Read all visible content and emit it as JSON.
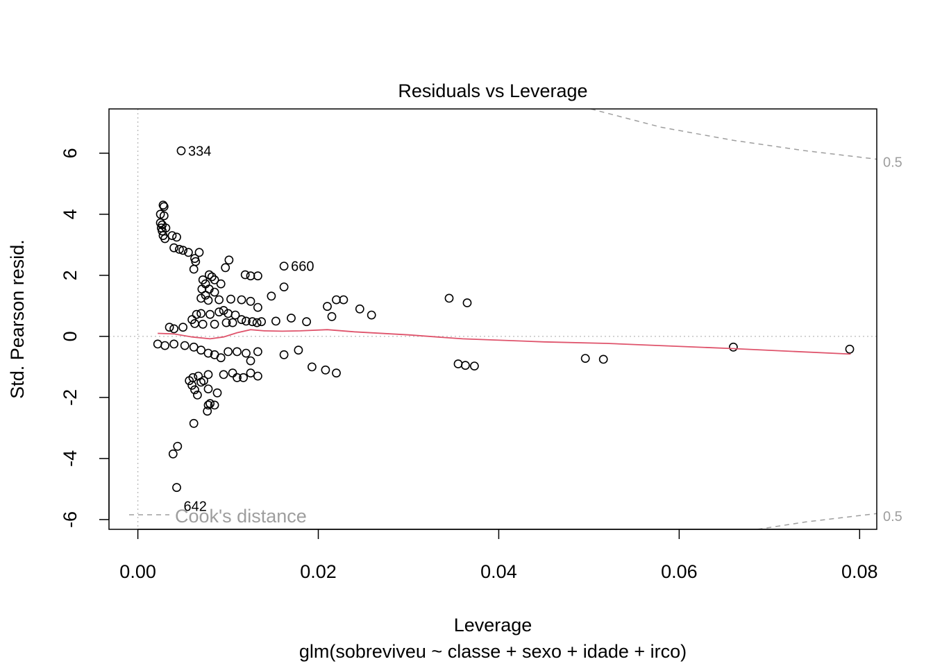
{
  "chart_data": {
    "type": "scatter",
    "title": "Residuals vs Leverage",
    "xlabel": "Leverage",
    "ylabel": "Std. Pearson resid.",
    "subtitle": "glm(sobreviveu ~ classe + sexo + idade + irco)",
    "xlim": [
      -0.0032,
      0.0819
    ],
    "ylim": [
      -6.32,
      7.45
    ],
    "x_ticks": [
      0.0,
      0.02,
      0.04,
      0.06,
      0.08
    ],
    "x_tick_labels": [
      "0.00",
      "0.02",
      "0.04",
      "0.06",
      "0.08"
    ],
    "y_ticks": [
      -6,
      -4,
      -2,
      0,
      2,
      4,
      6
    ],
    "y_tick_labels": [
      "-6",
      "-4",
      "-2",
      "0",
      "2",
      "4",
      "6"
    ],
    "grid": false,
    "reference_lines": {
      "vertical_x": 0,
      "horizontal_y": 0
    },
    "legend": {
      "label": "Cook's distance",
      "placement": "bottom-left"
    },
    "cooks_distance": {
      "level_label": "0.5",
      "upper": [
        [
          0.0502,
          7.45
        ],
        [
          0.058,
          6.85
        ],
        [
          0.066,
          6.42
        ],
        [
          0.074,
          6.08
        ],
        [
          0.082,
          5.8
        ]
      ],
      "lower": [
        [
          0.0687,
          -6.32
        ],
        [
          0.074,
          -6.08
        ],
        [
          0.082,
          -5.8
        ]
      ]
    },
    "smooth_line": {
      "color": "#DF536B",
      "points": [
        [
          0.0022,
          0.1
        ],
        [
          0.004,
          0.08
        ],
        [
          0.006,
          -0.02
        ],
        [
          0.008,
          -0.08
        ],
        [
          0.0095,
          -0.02
        ],
        [
          0.011,
          0.12
        ],
        [
          0.0125,
          0.22
        ],
        [
          0.014,
          0.18
        ],
        [
          0.016,
          0.17
        ],
        [
          0.018,
          0.18
        ],
        [
          0.021,
          0.22
        ],
        [
          0.024,
          0.15
        ],
        [
          0.03,
          0.05
        ],
        [
          0.036,
          -0.08
        ],
        [
          0.045,
          -0.18
        ],
        [
          0.052,
          -0.23
        ],
        [
          0.066,
          -0.4
        ],
        [
          0.079,
          -0.58
        ]
      ]
    },
    "labeled_points": [
      {
        "label": "334",
        "x": 0.0048,
        "y": 6.08
      },
      {
        "label": "660",
        "x": 0.0162,
        "y": 2.3
      },
      {
        "label": "642",
        "x": 0.0043,
        "y": -4.95
      }
    ],
    "points": [
      [
        0.0048,
        6.08
      ],
      [
        0.0162,
        2.3
      ],
      [
        0.0043,
        -4.95
      ],
      [
        0.0028,
        4.3
      ],
      [
        0.0029,
        4.25
      ],
      [
        0.0025,
        4.0
      ],
      [
        0.0029,
        3.95
      ],
      [
        0.0025,
        3.72
      ],
      [
        0.0027,
        3.65
      ],
      [
        0.0026,
        3.55
      ],
      [
        0.0031,
        3.55
      ],
      [
        0.0027,
        3.45
      ],
      [
        0.0028,
        3.3
      ],
      [
        0.003,
        3.2
      ],
      [
        0.0038,
        3.3
      ],
      [
        0.0043,
        3.25
      ],
      [
        0.004,
        2.9
      ],
      [
        0.0046,
        2.85
      ],
      [
        0.005,
        2.82
      ],
      [
        0.0056,
        2.75
      ],
      [
        0.0068,
        2.75
      ],
      [
        0.0063,
        2.55
      ],
      [
        0.0064,
        2.45
      ],
      [
        0.0062,
        2.2
      ],
      [
        0.0101,
        2.5
      ],
      [
        0.0097,
        2.25
      ],
      [
        0.0119,
        2.02
      ],
      [
        0.0125,
        1.98
      ],
      [
        0.0133,
        1.98
      ],
      [
        0.0079,
        2.02
      ],
      [
        0.0082,
        1.95
      ],
      [
        0.0072,
        1.85
      ],
      [
        0.0085,
        1.85
      ],
      [
        0.0075,
        1.72
      ],
      [
        0.0092,
        1.72
      ],
      [
        0.0071,
        1.55
      ],
      [
        0.0079,
        1.55
      ],
      [
        0.0085,
        1.45
      ],
      [
        0.0075,
        1.35
      ],
      [
        0.007,
        1.25
      ],
      [
        0.0078,
        1.18
      ],
      [
        0.009,
        1.2
      ],
      [
        0.0103,
        1.22
      ],
      [
        0.0115,
        1.2
      ],
      [
        0.0125,
        1.15
      ],
      [
        0.0133,
        0.95
      ],
      [
        0.0148,
        1.32
      ],
      [
        0.0162,
        1.62
      ],
      [
        0.021,
        0.98
      ],
      [
        0.022,
        1.2
      ],
      [
        0.0228,
        1.2
      ],
      [
        0.0246,
        0.9
      ],
      [
        0.0259,
        0.7
      ],
      [
        0.0215,
        0.65
      ],
      [
        0.0345,
        1.25
      ],
      [
        0.0365,
        1.1
      ],
      [
        0.017,
        0.6
      ],
      [
        0.0187,
        0.48
      ],
      [
        0.0153,
        0.5
      ],
      [
        0.0035,
        0.3
      ],
      [
        0.004,
        0.25
      ],
      [
        0.005,
        0.3
      ],
      [
        0.006,
        0.55
      ],
      [
        0.0065,
        0.72
      ],
      [
        0.007,
        0.75
      ],
      [
        0.008,
        0.72
      ],
      [
        0.009,
        0.8
      ],
      [
        0.0095,
        0.85
      ],
      [
        0.01,
        0.75
      ],
      [
        0.0108,
        0.7
      ],
      [
        0.0115,
        0.55
      ],
      [
        0.012,
        0.5
      ],
      [
        0.0127,
        0.48
      ],
      [
        0.0132,
        0.45
      ],
      [
        0.0137,
        0.48
      ],
      [
        0.0063,
        0.42
      ],
      [
        0.0072,
        0.4
      ],
      [
        0.0085,
        0.4
      ],
      [
        0.0098,
        0.45
      ],
      [
        0.0105,
        0.45
      ],
      [
        0.0022,
        -0.25
      ],
      [
        0.003,
        -0.3
      ],
      [
        0.004,
        -0.25
      ],
      [
        0.0052,
        -0.3
      ],
      [
        0.0062,
        -0.35
      ],
      [
        0.007,
        -0.45
      ],
      [
        0.0078,
        -0.55
      ],
      [
        0.0085,
        -0.6
      ],
      [
        0.0092,
        -0.7
      ],
      [
        0.01,
        -0.5
      ],
      [
        0.011,
        -0.5
      ],
      [
        0.012,
        -0.55
      ],
      [
        0.0125,
        -0.8
      ],
      [
        0.0133,
        -0.5
      ],
      [
        0.0095,
        -1.25
      ],
      [
        0.0105,
        -1.2
      ],
      [
        0.011,
        -1.35
      ],
      [
        0.0117,
        -1.35
      ],
      [
        0.0125,
        -1.2
      ],
      [
        0.0133,
        -1.3
      ],
      [
        0.0078,
        -1.25
      ],
      [
        0.0073,
        -1.45
      ],
      [
        0.0067,
        -1.3
      ],
      [
        0.0061,
        -1.35
      ],
      [
        0.0057,
        -1.45
      ],
      [
        0.006,
        -1.6
      ],
      [
        0.007,
        -1.5
      ],
      [
        0.0063,
        -1.75
      ],
      [
        0.0066,
        -1.92
      ],
      [
        0.0078,
        -1.72
      ],
      [
        0.0088,
        -1.85
      ],
      [
        0.0085,
        -2.25
      ],
      [
        0.0078,
        -2.25
      ],
      [
        0.008,
        -2.2
      ],
      [
        0.0077,
        -2.45
      ],
      [
        0.0062,
        -2.85
      ],
      [
        0.0044,
        -3.6
      ],
      [
        0.0039,
        -3.85
      ],
      [
        0.0162,
        -0.6
      ],
      [
        0.0178,
        -0.45
      ],
      [
        0.0193,
        -1.0
      ],
      [
        0.0208,
        -1.1
      ],
      [
        0.022,
        -1.2
      ],
      [
        0.0355,
        -0.9
      ],
      [
        0.0363,
        -0.95
      ],
      [
        0.0373,
        -0.97
      ],
      [
        0.0496,
        -0.72
      ],
      [
        0.0516,
        -0.75
      ],
      [
        0.066,
        -0.35
      ],
      [
        0.0789,
        -0.42
      ]
    ]
  }
}
